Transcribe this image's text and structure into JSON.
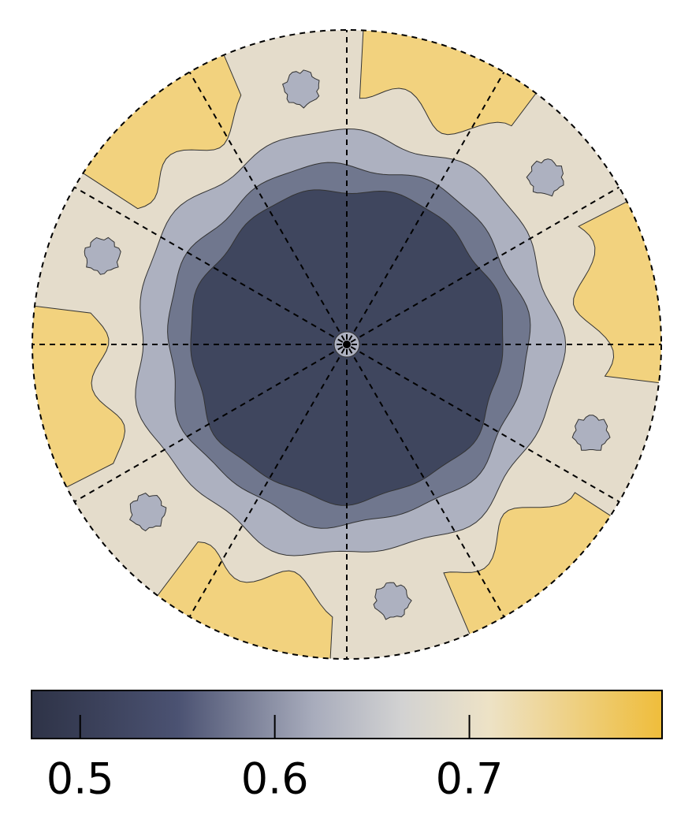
{
  "chart_data": {
    "type": "contour",
    "clim": [
      0.475,
      0.799
    ],
    "cticks": [
      0.5,
      0.6,
      0.7
    ],
    "colormap": [
      {
        "value": 0.475,
        "color": "#2e3347"
      },
      {
        "value": 0.55,
        "color": "#4b5272"
      },
      {
        "value": 0.62,
        "color": "#a8acbc"
      },
      {
        "value": 0.665,
        "color": "#d2d2d2"
      },
      {
        "value": 0.71,
        "color": "#ede2c6"
      },
      {
        "value": 0.799,
        "color": "#efbd3b"
      }
    ],
    "levels": [
      0.5,
      0.56,
      0.64,
      0.71,
      0.77
    ],
    "level_colors": [
      "#3f465e",
      "#70778e",
      "#adb1c0",
      "#e4dccb",
      "#f2d27e"
    ]
  }
}
